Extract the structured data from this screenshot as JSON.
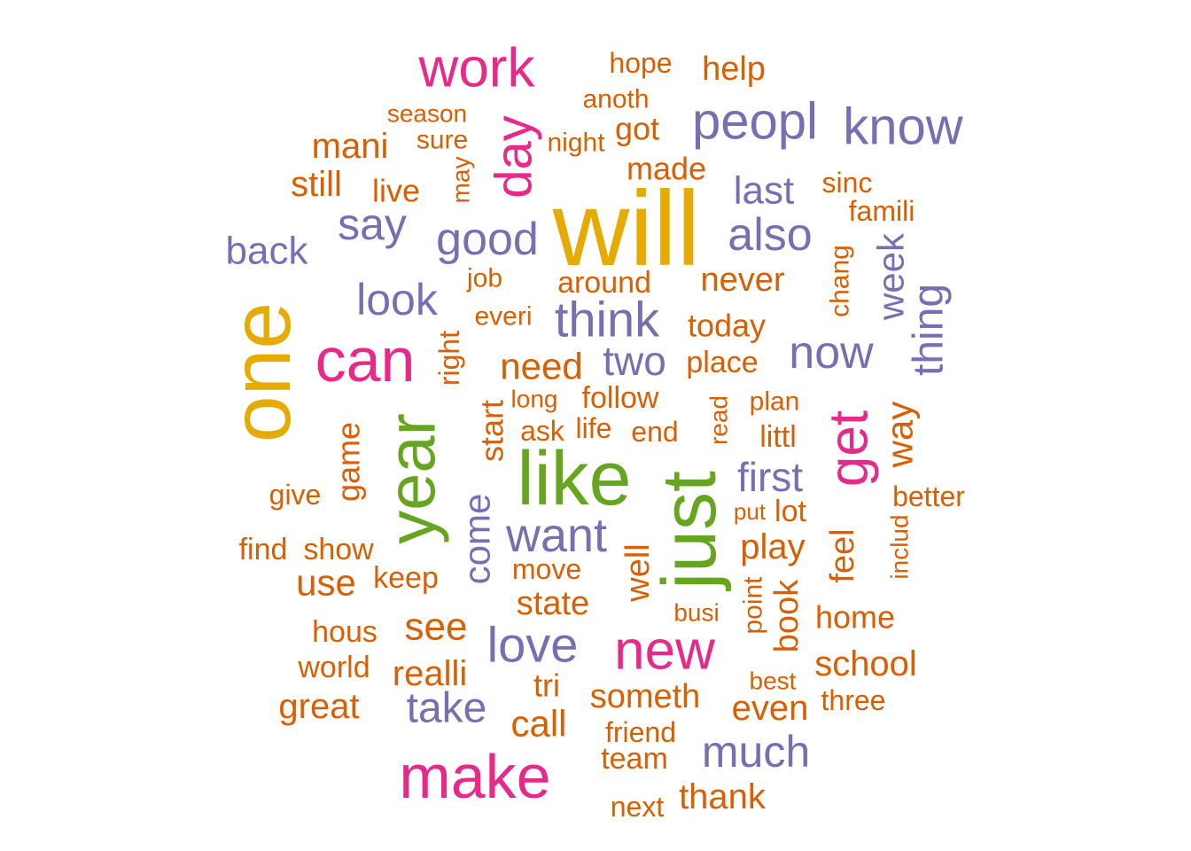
{
  "colors": {
    "orange": "#D95F02",
    "purple": "#7570B3",
    "magenta": "#E7298A",
    "gold": "#E6AB02",
    "green": "#66A61E",
    "background": "#FFFFFF"
  },
  "words": [
    {
      "text": "will",
      "color": "gold"
    },
    {
      "text": "one",
      "color": "gold"
    },
    {
      "text": "like",
      "color": "green"
    },
    {
      "text": "just",
      "color": "green"
    },
    {
      "text": "year",
      "color": "green"
    },
    {
      "text": "can",
      "color": "magenta"
    },
    {
      "text": "make",
      "color": "magenta"
    },
    {
      "text": "work",
      "color": "magenta"
    },
    {
      "text": "new",
      "color": "magenta"
    },
    {
      "text": "get",
      "color": "magenta"
    },
    {
      "text": "day",
      "color": "magenta"
    },
    {
      "text": "peopl",
      "color": "purple"
    },
    {
      "text": "know",
      "color": "purple"
    },
    {
      "text": "think",
      "color": "purple"
    },
    {
      "text": "love",
      "color": "purple"
    },
    {
      "text": "want",
      "color": "purple"
    },
    {
      "text": "good",
      "color": "purple"
    },
    {
      "text": "also",
      "color": "purple"
    },
    {
      "text": "now",
      "color": "purple"
    },
    {
      "text": "much",
      "color": "purple"
    },
    {
      "text": "look",
      "color": "purple"
    },
    {
      "text": "say",
      "color": "purple"
    },
    {
      "text": "back",
      "color": "purple"
    },
    {
      "text": "first",
      "color": "purple"
    },
    {
      "text": "take",
      "color": "purple"
    },
    {
      "text": "two",
      "color": "purple"
    },
    {
      "text": "last",
      "color": "purple"
    },
    {
      "text": "thing",
      "color": "purple"
    },
    {
      "text": "week",
      "color": "purple"
    },
    {
      "text": "come",
      "color": "purple"
    },
    {
      "text": "help",
      "color": "orange"
    },
    {
      "text": "hope",
      "color": "orange"
    },
    {
      "text": "anoth",
      "color": "orange"
    },
    {
      "text": "season",
      "color": "orange"
    },
    {
      "text": "sure",
      "color": "orange"
    },
    {
      "text": "night",
      "color": "orange"
    },
    {
      "text": "got",
      "color": "orange"
    },
    {
      "text": "mani",
      "color": "orange"
    },
    {
      "text": "made",
      "color": "orange"
    },
    {
      "text": "still",
      "color": "orange"
    },
    {
      "text": "live",
      "color": "orange"
    },
    {
      "text": "may",
      "color": "orange"
    },
    {
      "text": "sinc",
      "color": "orange"
    },
    {
      "text": "famili",
      "color": "orange"
    },
    {
      "text": "chang",
      "color": "orange"
    },
    {
      "text": "job",
      "color": "orange"
    },
    {
      "text": "around",
      "color": "orange"
    },
    {
      "text": "never",
      "color": "orange"
    },
    {
      "text": "everi",
      "color": "orange"
    },
    {
      "text": "today",
      "color": "orange"
    },
    {
      "text": "right",
      "color": "orange"
    },
    {
      "text": "need",
      "color": "orange"
    },
    {
      "text": "place",
      "color": "orange"
    },
    {
      "text": "long",
      "color": "orange"
    },
    {
      "text": "follow",
      "color": "orange"
    },
    {
      "text": "plan",
      "color": "orange"
    },
    {
      "text": "way",
      "color": "orange"
    },
    {
      "text": "read",
      "color": "orange"
    },
    {
      "text": "start",
      "color": "orange"
    },
    {
      "text": "ask",
      "color": "orange"
    },
    {
      "text": "life",
      "color": "orange"
    },
    {
      "text": "end",
      "color": "orange"
    },
    {
      "text": "littl",
      "color": "orange"
    },
    {
      "text": "game",
      "color": "orange"
    },
    {
      "text": "give",
      "color": "orange"
    },
    {
      "text": "better",
      "color": "orange"
    },
    {
      "text": "put",
      "color": "orange"
    },
    {
      "text": "lot",
      "color": "orange"
    },
    {
      "text": "find",
      "color": "orange"
    },
    {
      "text": "show",
      "color": "orange"
    },
    {
      "text": "play",
      "color": "orange"
    },
    {
      "text": "feel",
      "color": "orange"
    },
    {
      "text": "includ",
      "color": "orange"
    },
    {
      "text": "use",
      "color": "orange"
    },
    {
      "text": "keep",
      "color": "orange"
    },
    {
      "text": "move",
      "color": "orange"
    },
    {
      "text": "well",
      "color": "orange"
    },
    {
      "text": "state",
      "color": "orange"
    },
    {
      "text": "busi",
      "color": "orange"
    },
    {
      "text": "point",
      "color": "orange"
    },
    {
      "text": "book",
      "color": "orange"
    },
    {
      "text": "home",
      "color": "orange"
    },
    {
      "text": "hous",
      "color": "orange"
    },
    {
      "text": "see",
      "color": "orange"
    },
    {
      "text": "world",
      "color": "orange"
    },
    {
      "text": "realli",
      "color": "orange"
    },
    {
      "text": "school",
      "color": "orange"
    },
    {
      "text": "tri",
      "color": "orange"
    },
    {
      "text": "best",
      "color": "orange"
    },
    {
      "text": "great",
      "color": "orange"
    },
    {
      "text": "someth",
      "color": "orange"
    },
    {
      "text": "three",
      "color": "orange"
    },
    {
      "text": "even",
      "color": "orange"
    },
    {
      "text": "call",
      "color": "orange"
    },
    {
      "text": "friend",
      "color": "orange"
    },
    {
      "text": "team",
      "color": "orange"
    },
    {
      "text": "thank",
      "color": "orange"
    },
    {
      "text": "next",
      "color": "orange"
    }
  ]
}
